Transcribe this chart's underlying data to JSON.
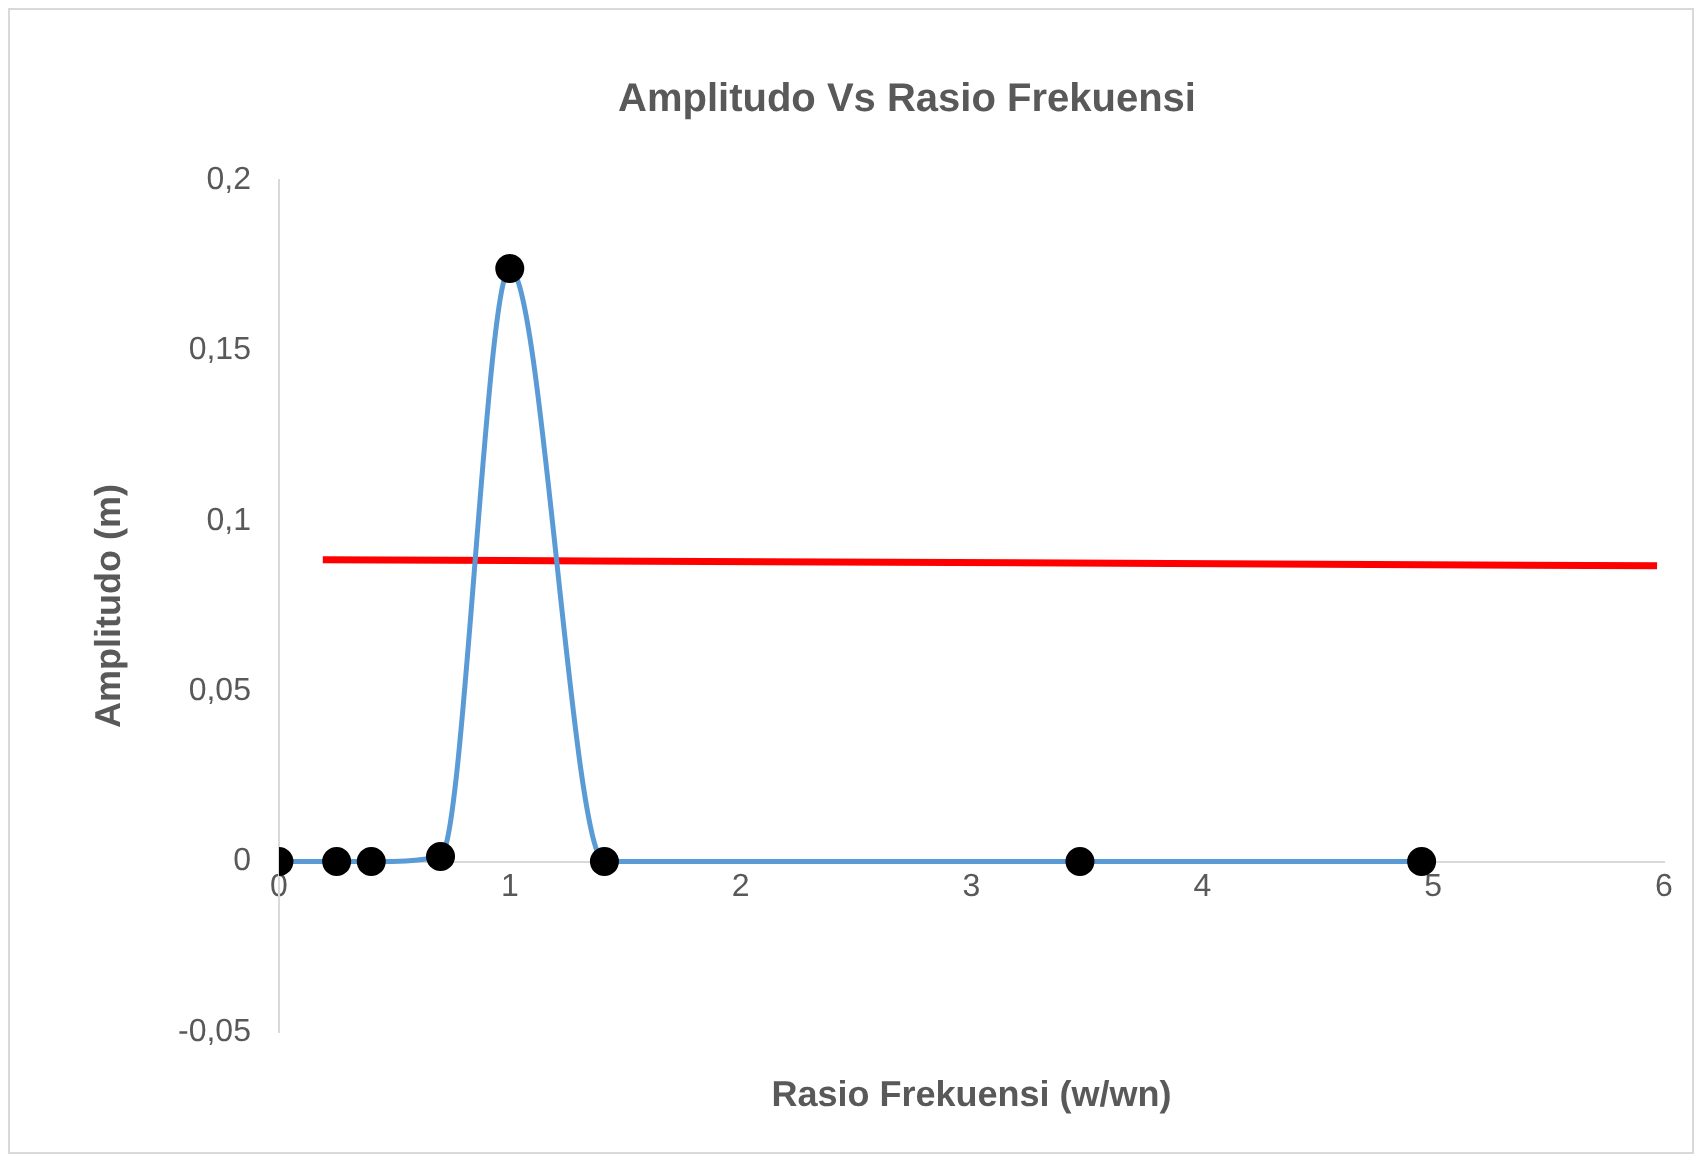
{
  "chart_data": {
    "type": "line",
    "title": "Amplitudo Vs Rasio Frekuensi",
    "xlabel": "Rasio Frekuensi (w/wn)",
    "ylabel": "Amplitudo (m)",
    "x": [
      0,
      0.25,
      0.4,
      0.7,
      1,
      1.41,
      3.47,
      4.95
    ],
    "series": [
      {
        "color": "#5b9bd5",
        "marker": "circle",
        "values": [
          0,
          0,
          0,
          0.0015,
          0.174,
          0,
          0,
          0
        ]
      },
      {
        "color": "#ff0000",
        "marker": "none",
        "x": [
          0.19,
          5.97
        ],
        "values": [
          0.0886,
          0.0868
        ]
      }
    ],
    "xlim": [
      0,
      6
    ],
    "xticks": [
      0,
      1,
      2,
      3,
      4,
      5,
      6
    ],
    "ylim": [
      -0.05,
      0.2
    ],
    "yticks": [
      {
        "value": -0.05,
        "label": "-0,05"
      },
      0,
      {
        "value": 0.05,
        "label": "0,05"
      },
      {
        "value": 0.1,
        "label": "0,1"
      },
      {
        "value": 0.15,
        "label": "0,15"
      },
      {
        "value": 0.2,
        "label": "0,2"
      }
    ],
    "grid": false,
    "legend": false
  }
}
